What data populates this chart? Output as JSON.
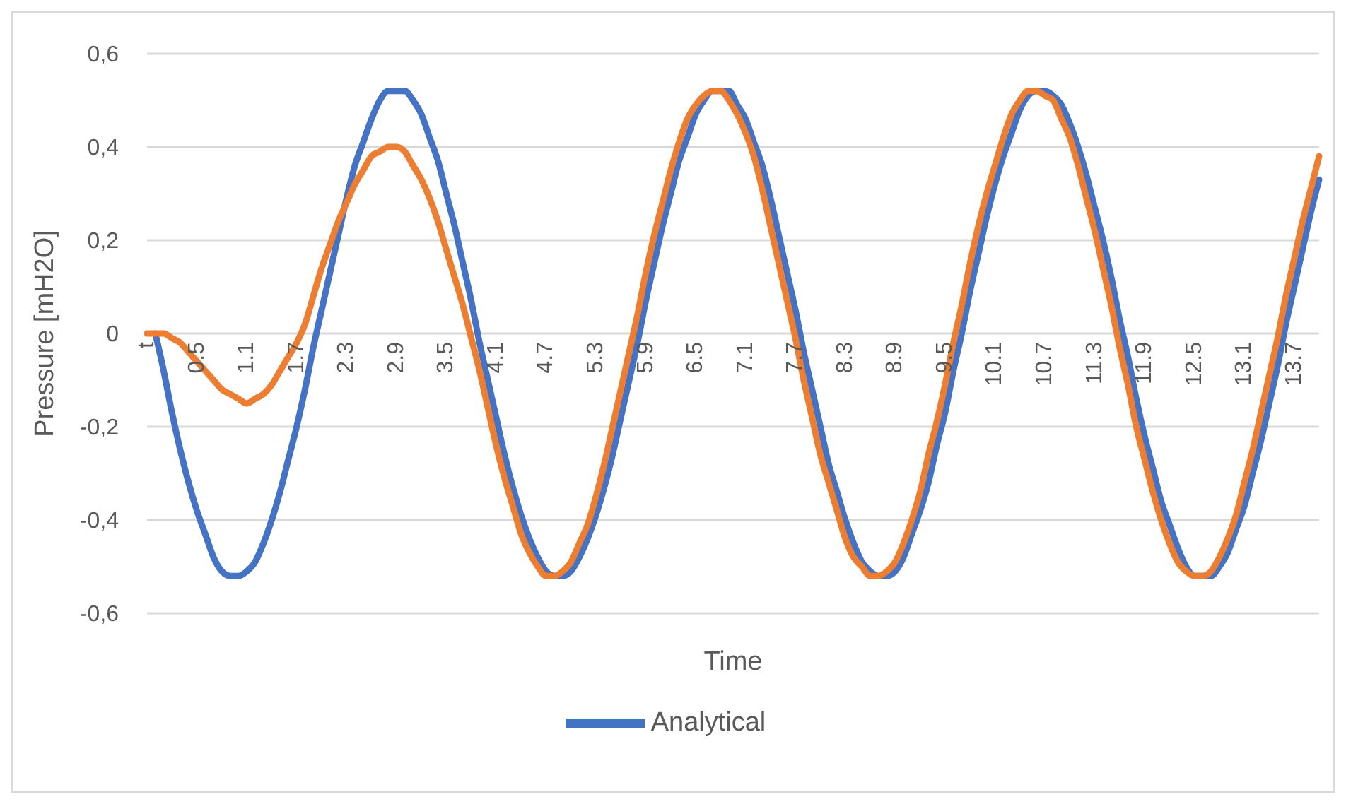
{
  "chart_data": {
    "type": "line",
    "xlabel": "Time",
    "ylabel": "Pressure [mH2O]",
    "categories": [
      "t",
      null,
      null,
      null,
      null,
      null,
      "0.5",
      null,
      null,
      null,
      null,
      null,
      "1.1",
      null,
      null,
      null,
      null,
      null,
      "1.7",
      null,
      null,
      null,
      null,
      null,
      "2.3",
      null,
      null,
      null,
      null,
      null,
      "2.9",
      null,
      null,
      null,
      null,
      null,
      "3.5",
      null,
      null,
      null,
      null,
      null,
      "4.1",
      null,
      null,
      null,
      null,
      null,
      "4.7",
      null,
      null,
      null,
      null,
      null,
      "5.3",
      null,
      null,
      null,
      null,
      null,
      "5.9",
      null,
      null,
      null,
      null,
      null,
      "6.5",
      null,
      null,
      null,
      null,
      null,
      "7.1",
      null,
      null,
      null,
      null,
      null,
      "7.7",
      null,
      null,
      null,
      null,
      null,
      "8.3",
      null,
      null,
      null,
      null,
      null,
      "8.9",
      null,
      null,
      null,
      null,
      null,
      "9.5",
      null,
      null,
      null,
      null,
      null,
      "10.1",
      null,
      null,
      null,
      null,
      null,
      "10.7",
      null,
      null,
      null,
      null,
      null,
      "11.3",
      null,
      null,
      null,
      null,
      null,
      "11.9",
      null,
      null,
      null,
      null,
      null,
      "12.5",
      null,
      null,
      null,
      null,
      null,
      "13.1",
      null,
      null,
      null,
      null,
      null,
      "13.7",
      null,
      null,
      null
    ],
    "series": [
      {
        "name": "Analytical",
        "color": "#4472c4",
        "values": [
          null,
          0,
          -0.08,
          -0.17,
          -0.25,
          -0.32,
          -0.38,
          -0.43,
          -0.48,
          -0.51,
          -0.52,
          -0.52,
          -0.51,
          -0.49,
          -0.45,
          -0.4,
          -0.34,
          -0.27,
          -0.2,
          -0.12,
          -0.03,
          0.05,
          0.13,
          0.21,
          0.29,
          0.36,
          0.41,
          0.46,
          0.5,
          0.52,
          0.52,
          0.52,
          0.5,
          0.47,
          0.42,
          0.37,
          0.3,
          0.23,
          0.15,
          0.07,
          -0.02,
          -0.1,
          -0.18,
          -0.26,
          -0.33,
          -0.39,
          -0.44,
          -0.48,
          -0.51,
          -0.52,
          -0.52,
          -0.51,
          -0.48,
          -0.44,
          -0.39,
          -0.33,
          -0.26,
          -0.18,
          -0.1,
          -0.02,
          0.07,
          0.15,
          0.23,
          0.3,
          0.37,
          0.42,
          0.47,
          0.5,
          0.52,
          0.52,
          0.52,
          0.49,
          0.46,
          0.41,
          0.36,
          0.29,
          0.21,
          0.13,
          0.05,
          -0.04,
          -0.12,
          -0.2,
          -0.28,
          -0.34,
          -0.4,
          -0.45,
          -0.49,
          -0.51,
          -0.52,
          -0.52,
          -0.51,
          -0.48,
          -0.43,
          -0.38,
          -0.32,
          -0.24,
          -0.17,
          -0.08,
          0,
          0.09,
          0.17,
          0.25,
          0.32,
          0.38,
          0.43,
          0.48,
          0.51,
          0.52,
          0.52,
          0.51,
          0.49,
          0.45,
          0.4,
          0.34,
          0.27,
          0.2,
          0.12,
          0.03,
          -0.05,
          -0.14,
          -0.22,
          -0.29,
          -0.36,
          -0.41,
          -0.46,
          -0.5,
          -0.52,
          -0.52,
          -0.52,
          -0.5,
          -0.47,
          -0.42,
          -0.37,
          -0.3,
          -0.23,
          -0.15,
          -0.07,
          0.02,
          0.1,
          0.18,
          0.26,
          0.33
        ]
      },
      {
        "color": "#ed7d31",
        "values": [
          0,
          0,
          0,
          -0.01,
          -0.02,
          -0.04,
          -0.06,
          -0.08,
          -0.1,
          -0.12,
          -0.13,
          -0.14,
          -0.15,
          -0.14,
          -0.13,
          -0.11,
          -0.08,
          -0.05,
          -0.02,
          0.02,
          0.08,
          0.14,
          0.19,
          0.24,
          0.28,
          0.32,
          0.35,
          0.38,
          0.39,
          0.4,
          0.4,
          0.39,
          0.36,
          0.33,
          0.29,
          0.24,
          0.18,
          0.12,
          0.06,
          -0.01,
          -0.08,
          -0.16,
          -0.24,
          -0.31,
          -0.37,
          -0.43,
          -0.47,
          -0.5,
          -0.52,
          -0.52,
          -0.51,
          -0.49,
          -0.45,
          -0.41,
          -0.35,
          -0.28,
          -0.2,
          -0.12,
          -0.04,
          0.04,
          0.13,
          0.21,
          0.28,
          0.35,
          0.41,
          0.46,
          0.49,
          0.51,
          0.52,
          0.52,
          0.5,
          0.47,
          0.43,
          0.38,
          0.31,
          0.23,
          0.15,
          0.07,
          -0.01,
          -0.1,
          -0.18,
          -0.26,
          -0.32,
          -0.38,
          -0.44,
          -0.48,
          -0.5,
          -0.52,
          -0.52,
          -0.51,
          -0.49,
          -0.45,
          -0.4,
          -0.34,
          -0.26,
          -0.19,
          -0.11,
          -0.02,
          0.06,
          0.15,
          0.23,
          0.3,
          0.36,
          0.42,
          0.47,
          0.5,
          0.52,
          0.52,
          0.51,
          0.5,
          0.46,
          0.42,
          0.36,
          0.29,
          0.22,
          0.14,
          0.06,
          -0.03,
          -0.11,
          -0.2,
          -0.27,
          -0.34,
          -0.4,
          -0.45,
          -0.49,
          -0.51,
          -0.52,
          -0.52,
          -0.51,
          -0.48,
          -0.44,
          -0.39,
          -0.32,
          -0.25,
          -0.17,
          -0.09,
          -0.01,
          0.08,
          0.16,
          0.24,
          0.31,
          0.38
        ]
      }
    ],
    "ylim": [
      -0.6,
      0.6
    ],
    "yticks": [
      {
        "value": -0.6,
        "label": "-0,6"
      },
      {
        "value": -0.4,
        "label": "-0,4"
      },
      {
        "value": -0.2,
        "label": "-0,2"
      },
      0,
      {
        "value": 0.2,
        "label": "0,2"
      },
      {
        "value": 0.4,
        "label": "0,4"
      },
      {
        "value": 0.6,
        "label": "0,6"
      }
    ],
    "grid": "y",
    "legend": "bottom",
    "marker": "none",
    "line_style": "solid"
  }
}
